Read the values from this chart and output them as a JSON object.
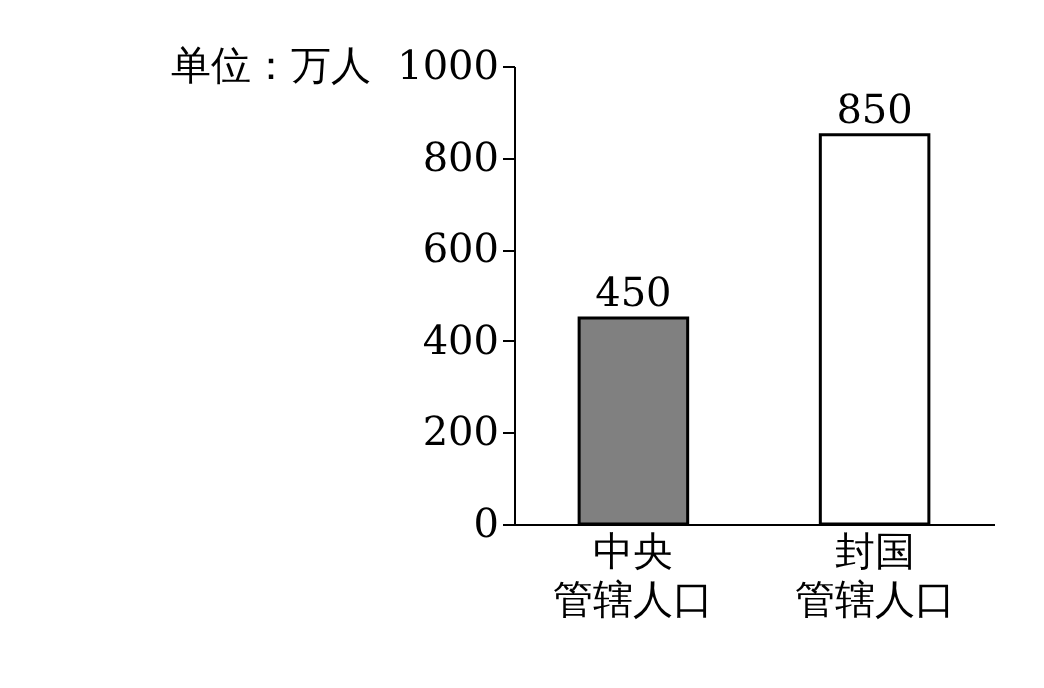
{
  "chart_data": {
    "type": "bar",
    "ylabel": "单位：万人",
    "categories": [
      "中央管辖人口",
      "封国管辖人口"
    ],
    "values": [
      450,
      850
    ],
    "colors": [
      "#808080",
      "#ffffff"
    ],
    "ylim": [
      0,
      1000
    ],
    "yticks": [
      0,
      200,
      400,
      600,
      800,
      1000
    ],
    "grid": false,
    "data_labels": true
  }
}
